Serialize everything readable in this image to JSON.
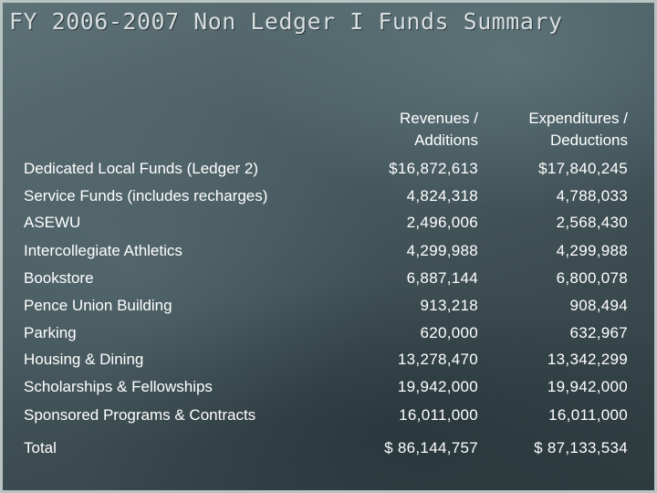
{
  "title": "FY 2006-2007 Non Ledger I Funds Summary",
  "columns": {
    "revenues": [
      "Revenues /",
      "Additions"
    ],
    "expenditures": [
      "Expenditures /",
      "Deductions"
    ]
  },
  "rows": [
    {
      "label": "Dedicated Local Funds (Ledger 2)",
      "revenues": "$16,872,613",
      "expenditures": "$17,840,245"
    },
    {
      "label": "Service Funds (includes recharges)",
      "revenues": "4,824,318",
      "expenditures": "4,788,033"
    },
    {
      "label": "ASEWU",
      "revenues": "2,496,006",
      "expenditures": "2,568,430"
    },
    {
      "label": "Intercollegiate Athletics",
      "revenues": "4,299,988",
      "expenditures": "4,299,988"
    },
    {
      "label": "Bookstore",
      "revenues": "6,887,144",
      "expenditures": "6,800,078"
    },
    {
      "label": "Pence Union Building",
      "revenues": "913,218",
      "expenditures": "908,494"
    },
    {
      "label": "Parking",
      "revenues": "620,000",
      "expenditures": "632,967"
    },
    {
      "label": "Housing & Dining",
      "revenues": "13,278,470",
      "expenditures": "13,342,299"
    },
    {
      "label": "Scholarships & Fellowships",
      "revenues": "19,942,000",
      "expenditures": "19,942,000"
    },
    {
      "label": "Sponsored Programs & Contracts",
      "revenues": "16,011,000",
      "expenditures": "16,011,000"
    }
  ],
  "total": {
    "label": "Total",
    "revenues": "$ 86,144,757",
    "expenditures": "$ 87,133,534"
  }
}
